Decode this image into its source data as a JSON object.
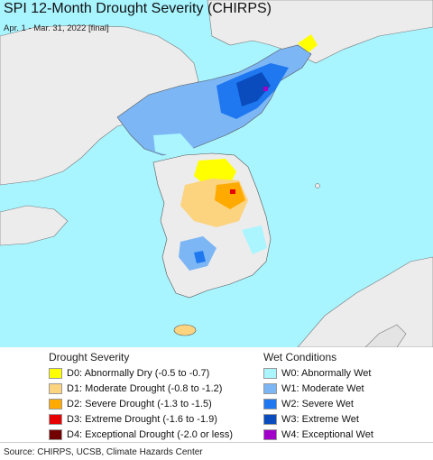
{
  "map": {
    "title": "SPI 12-Month Drought Severity (CHIRPS)",
    "subtitle": "Apr. 1 - Mar. 31, 2022 [final]",
    "ocean_color": "#a8f4ff",
    "land_color": "#ececec"
  },
  "legend": {
    "drought_heading": "Drought Severity",
    "drought_items": [
      {
        "label": "D0: Abnormally Dry (-0.5 to -0.7)",
        "color": "#ffff00"
      },
      {
        "label": "D1: Moderate Drought (-0.8 to -1.2)",
        "color": "#fcd37f"
      },
      {
        "label": "D2: Severe Drought (-1.3 to -1.5)",
        "color": "#ffaa00"
      },
      {
        "label": "D3: Extreme Drought (-1.6 to -1.9)",
        "color": "#e60000"
      },
      {
        "label": "D4: Exceptional Drought (-2.0 or less)",
        "color": "#730000"
      }
    ],
    "wet_heading": "Wet Conditions",
    "wet_items": [
      {
        "label": "W0: Abnormally Wet",
        "color": "#aaf5ff"
      },
      {
        "label": "W1: Moderate Wet",
        "color": "#7cb6f5"
      },
      {
        "label": "W2: Severe Wet",
        "color": "#1f78f0"
      },
      {
        "label": "W3: Extreme Wet",
        "color": "#0a4cbe"
      },
      {
        "label": "W4: Exceptional Wet",
        "color": "#a000c8"
      }
    ]
  },
  "footer": {
    "source": "Source: CHIRPS, UCSB, Climate Hazards Center"
  }
}
